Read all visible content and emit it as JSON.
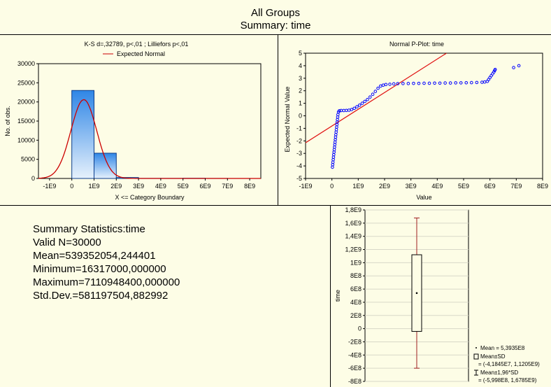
{
  "header": {
    "line1": "All Groups",
    "line2": "Summary: time"
  },
  "chart_data": [
    {
      "type": "bar",
      "title": "K-S d=,32789, p<,01 ; Lilliefors p<,01",
      "legend": [
        "Expected Normal"
      ],
      "xlabel": "X <= Category Boundary",
      "ylabel": "No. of obs.",
      "x_ticks": [
        "-1E9",
        "0",
        "1E9",
        "2E9",
        "3E9",
        "4E9",
        "5E9",
        "6E9",
        "7E9",
        "8E9"
      ],
      "x_tick_values": [
        -1,
        0,
        1,
        2,
        3,
        4,
        5,
        6,
        7,
        8
      ],
      "y_ticks": [
        "0",
        "5000",
        "10000",
        "15000",
        "20000",
        "25000",
        "30000"
      ],
      "y_tick_values": [
        0,
        5000,
        10000,
        15000,
        20000,
        25000,
        30000
      ],
      "xlim": [
        -1.5,
        8.5
      ],
      "ylim": [
        0,
        30000
      ],
      "bins": [
        {
          "from": 0,
          "to": 1,
          "value": 23000
        },
        {
          "from": 1,
          "to": 2,
          "value": 6600
        },
        {
          "from": 2,
          "to": 3,
          "value": 250
        },
        {
          "from": 3,
          "to": 4,
          "value": 30
        },
        {
          "from": 4,
          "to": 5,
          "value": 30
        },
        {
          "from": 5,
          "to": 6,
          "value": 60
        },
        {
          "from": 6,
          "to": 7,
          "value": 20
        },
        {
          "from": 7,
          "to": 8,
          "value": 5
        }
      ],
      "expected_normal": {
        "mean": 0.539352,
        "sd": 0.581198,
        "n": 30000,
        "bin_width": 1
      },
      "colors": {
        "bar_top": "#2f86e6",
        "bar_bottom": "#e6f1fc",
        "curve": "#cc0000"
      }
    },
    {
      "type": "scatter",
      "title": "Normal P-Plot: time",
      "xlabel": "Value",
      "ylabel": "Expected Normal Value",
      "x_ticks": [
        "-1E9",
        "0",
        "1E9",
        "2E9",
        "3E9",
        "4E9",
        "5E9",
        "6E9",
        "7E9",
        "8E9"
      ],
      "x_tick_values": [
        -1,
        0,
        1,
        2,
        3,
        4,
        5,
        6,
        7,
        8
      ],
      "y_ticks": [
        "-5",
        "-4",
        "-3",
        "-2",
        "-1",
        "0",
        "1",
        "2",
        "3",
        "4",
        "5"
      ],
      "y_tick_values": [
        -5,
        -4,
        -3,
        -2,
        -1,
        0,
        1,
        2,
        3,
        4,
        5
      ],
      "xlim": [
        -1,
        8
      ],
      "ylim": [
        -5,
        5
      ],
      "points": [
        [
          0.02,
          -4.1
        ],
        [
          0.03,
          -3.9
        ],
        [
          0.04,
          -3.7
        ],
        [
          0.05,
          -3.5
        ],
        [
          0.06,
          -3.3
        ],
        [
          0.07,
          -3.1
        ],
        [
          0.08,
          -2.9
        ],
        [
          0.09,
          -2.7
        ],
        [
          0.1,
          -2.5
        ],
        [
          0.11,
          -2.3
        ],
        [
          0.12,
          -2.1
        ],
        [
          0.13,
          -1.9
        ],
        [
          0.14,
          -1.7
        ],
        [
          0.15,
          -1.5
        ],
        [
          0.16,
          -1.3
        ],
        [
          0.17,
          -1.1
        ],
        [
          0.18,
          -0.9
        ],
        [
          0.19,
          -0.7
        ],
        [
          0.2,
          -0.5
        ],
        [
          0.21,
          -0.3
        ],
        [
          0.22,
          -0.1
        ],
        [
          0.23,
          0.1
        ],
        [
          0.25,
          0.3
        ],
        [
          0.28,
          0.4
        ],
        [
          0.35,
          0.42
        ],
        [
          0.45,
          0.42
        ],
        [
          0.55,
          0.43
        ],
        [
          0.65,
          0.45
        ],
        [
          0.75,
          0.5
        ],
        [
          0.85,
          0.6
        ],
        [
          0.95,
          0.72
        ],
        [
          1.05,
          0.85
        ],
        [
          1.15,
          1.0
        ],
        [
          1.25,
          1.15
        ],
        [
          1.35,
          1.3
        ],
        [
          1.45,
          1.5
        ],
        [
          1.55,
          1.72
        ],
        [
          1.65,
          1.95
        ],
        [
          1.75,
          2.2
        ],
        [
          1.85,
          2.38
        ],
        [
          1.95,
          2.45
        ],
        [
          2.05,
          2.5
        ],
        [
          2.2,
          2.52
        ],
        [
          2.35,
          2.55
        ],
        [
          2.5,
          2.57
        ],
        [
          2.7,
          2.58
        ],
        [
          2.9,
          2.58
        ],
        [
          3.1,
          2.59
        ],
        [
          3.3,
          2.59
        ],
        [
          3.5,
          2.6
        ],
        [
          3.7,
          2.6
        ],
        [
          3.9,
          2.61
        ],
        [
          4.1,
          2.61
        ],
        [
          4.3,
          2.62
        ],
        [
          4.5,
          2.62
        ],
        [
          4.7,
          2.63
        ],
        [
          4.9,
          2.63
        ],
        [
          5.1,
          2.64
        ],
        [
          5.3,
          2.65
        ],
        [
          5.5,
          2.66
        ],
        [
          5.7,
          2.68
        ],
        [
          5.8,
          2.7
        ],
        [
          5.9,
          2.75
        ],
        [
          5.95,
          2.9
        ],
        [
          6.0,
          3.05
        ],
        [
          6.05,
          3.2
        ],
        [
          6.1,
          3.35
        ],
        [
          6.15,
          3.5
        ],
        [
          6.18,
          3.62
        ],
        [
          6.2,
          3.7
        ],
        [
          6.9,
          3.85
        ],
        [
          7.1,
          4.0
        ]
      ],
      "reference_line": {
        "from": [
          -1,
          -2.15
        ],
        "to": [
          4.35,
          5.0
        ]
      },
      "colors": {
        "points": "#0000ff",
        "line": "#e01010"
      }
    },
    {
      "type": "box",
      "ylabel": "time",
      "y_ticks": [
        "-8E8",
        "-6E8",
        "-4E8",
        "-2E8",
        "0",
        "2E8",
        "4E8",
        "6E8",
        "8E8",
        "1E9",
        "1,2E9",
        "1,4E9",
        "1,6E9",
        "1,8E9"
      ],
      "y_tick_values": [
        -8,
        -6,
        -4,
        -2,
        0,
        2,
        4,
        6,
        8,
        10,
        12,
        14,
        16,
        18
      ],
      "ylim": [
        -8,
        18
      ],
      "mean": 5.3935,
      "box": [
        -0.41845,
        11.205
      ],
      "whiskers": [
        -5.998,
        16.785
      ],
      "legend": [
        "Mean = 5,3935E8",
        "Mean±SD",
        "= (-4,1845E7, 1,1205E9)",
        "Mean±1,96*SD",
        "= (-5,998E8, 1,6785E9)"
      ],
      "colors": {
        "box": "#000000",
        "whisker": "#a02020"
      }
    }
  ],
  "summary": {
    "title": "Summary Statistics:time",
    "valid_n": "Valid N=30000",
    "mean": "Mean=539352054,244401",
    "minimum": "Minimum=16317000,000000",
    "maximum": "Maximum=7110948400,000000",
    "std_dev": "Std.Dev.=581197504,882992"
  }
}
